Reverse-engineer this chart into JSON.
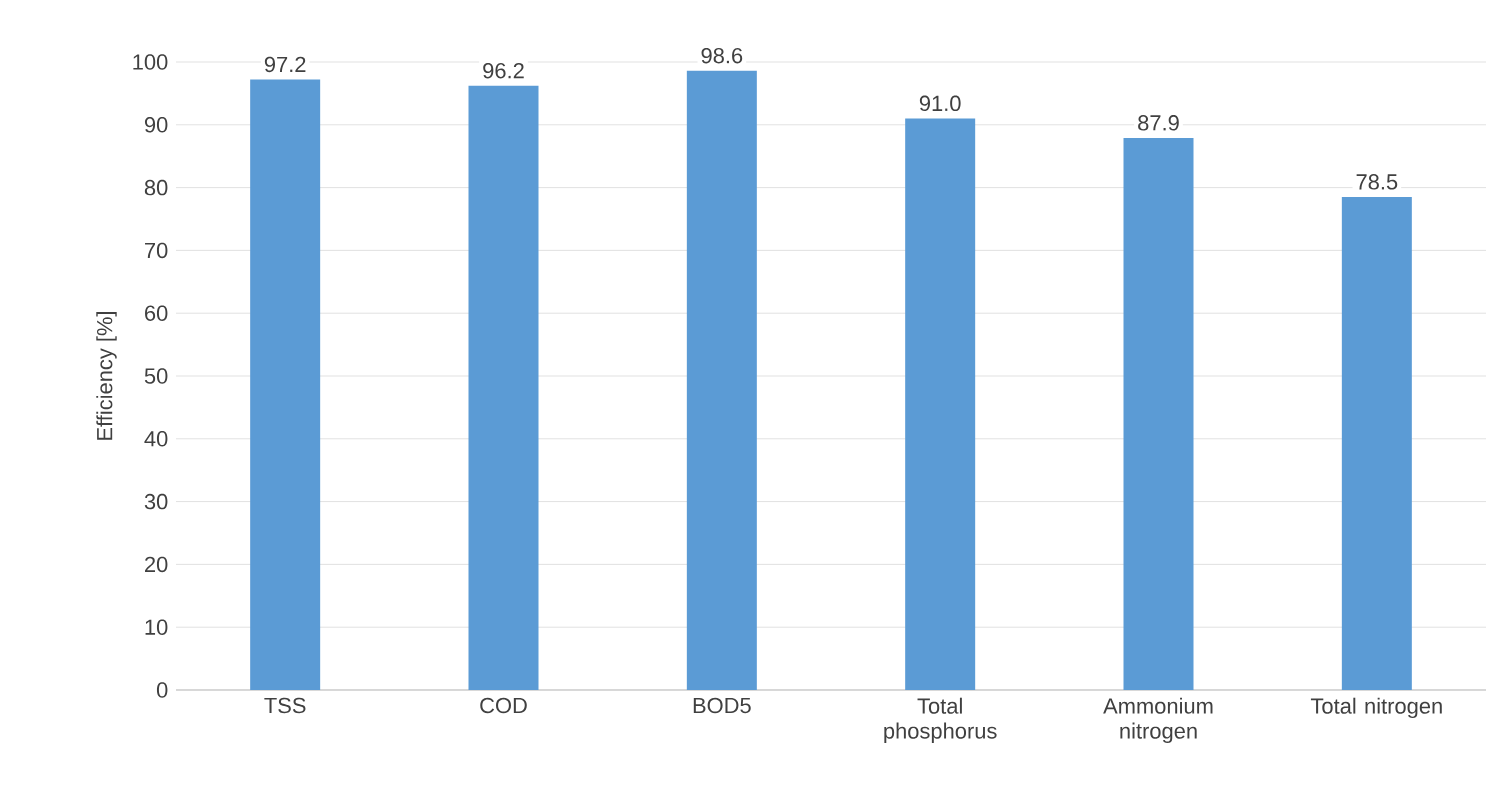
{
  "chart_data": {
    "type": "bar",
    "ylabel": "Efficiency [%]",
    "categories": [
      "TSS",
      "COD",
      "BOD5",
      "Total phosphorus",
      "Ammonium nitrogen",
      "Total nitrogen"
    ],
    "values": [
      97.2,
      96.2,
      98.6,
      91.0,
      87.9,
      78.5
    ],
    "value_labels": [
      "97.2",
      "96.2",
      "98.6",
      "91.0",
      "87.9",
      "78.5"
    ],
    "color": "#5b9bd5",
    "ylim": [
      0,
      100
    ],
    "yticks": [
      0,
      10,
      20,
      30,
      40,
      50,
      60,
      70,
      80,
      90,
      100
    ],
    "grid": "y"
  }
}
